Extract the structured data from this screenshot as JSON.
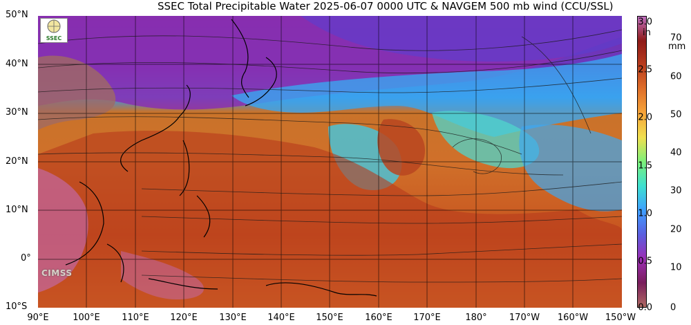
{
  "title": "SSEC Total Precipitable Water  2025-06-07 0000 UTC & NAVGEM 500 mb wind (CCU/SSL)",
  "lat_labels": [
    "50°N",
    "40°N",
    "30°N",
    "20°N",
    "10°N",
    "0°",
    "10°S"
  ],
  "lon_labels": [
    "90°E",
    "100°E",
    "110°E",
    "120°E",
    "130°E",
    "140°E",
    "150°E",
    "160°E",
    "170°E",
    "180°",
    "170°W",
    "160°W",
    "150°W"
  ],
  "colorbar": {
    "unit_in": "in",
    "unit_mm": "mm",
    "in_ticks": [
      "3.0",
      "2.5",
      "2.0",
      "1.5",
      "1.0",
      "0.5",
      "0.0"
    ],
    "mm_ticks": [
      "70",
      "60",
      "50",
      "40",
      "30",
      "20",
      "10",
      "0"
    ],
    "colors": [
      "#b06a63",
      "#7a1e5c",
      "#9b2fb5",
      "#5b5fe0",
      "#3fa0ff",
      "#3ee0d0",
      "#7cf07a",
      "#f0e050",
      "#f6a53a",
      "#e0702a",
      "#b83c1e",
      "#8e1a18",
      "#c070c0"
    ]
  },
  "logos": {
    "badge_text": "SSEC",
    "cimss_text": "CIMSS"
  }
}
